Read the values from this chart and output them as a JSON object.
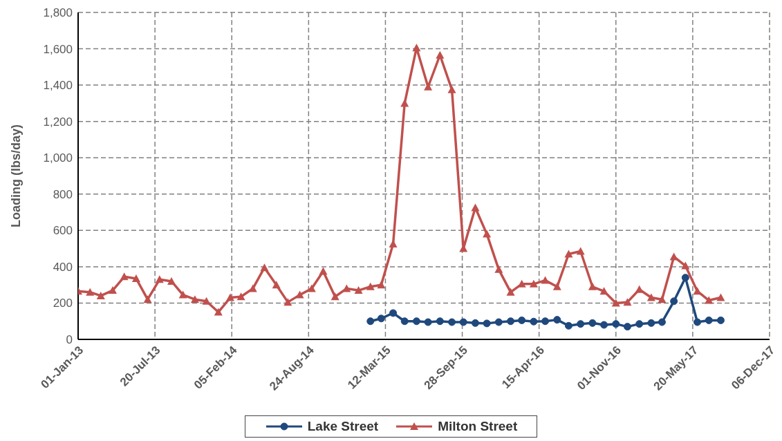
{
  "chart_data": {
    "type": "line",
    "ylabel": "Loading (lbs/day)",
    "x": [
      "2013-01",
      "2013-02",
      "2013-03",
      "2013-04",
      "2013-05",
      "2013-06",
      "2013-07",
      "2013-08",
      "2013-09",
      "2013-10",
      "2013-11",
      "2013-12",
      "2014-01",
      "2014-02",
      "2014-03",
      "2014-04",
      "2014-05",
      "2014-06",
      "2014-07",
      "2014-08",
      "2014-09",
      "2014-10",
      "2014-11",
      "2014-12",
      "2015-01",
      "2015-02",
      "2015-03",
      "2015-04",
      "2015-05",
      "2015-06",
      "2015-07",
      "2015-08",
      "2015-09",
      "2015-10",
      "2015-11",
      "2015-12",
      "2016-01",
      "2016-02",
      "2016-03",
      "2016-04",
      "2016-05",
      "2016-06",
      "2016-07",
      "2016-08",
      "2016-09",
      "2016-10",
      "2016-11",
      "2016-12",
      "2017-01",
      "2017-02",
      "2017-03",
      "2017-04",
      "2017-05",
      "2017-06",
      "2017-07",
      "2017-08"
    ],
    "series": [
      {
        "name": "Lake Street",
        "color": "#1f497d",
        "marker": "circle",
        "values": [
          null,
          null,
          null,
          null,
          null,
          null,
          null,
          null,
          null,
          null,
          null,
          null,
          null,
          null,
          null,
          null,
          null,
          null,
          null,
          null,
          null,
          null,
          null,
          null,
          null,
          100,
          115,
          145,
          100,
          100,
          95,
          100,
          95,
          95,
          90,
          88,
          95,
          100,
          105,
          98,
          100,
          108,
          75,
          85,
          90,
          80,
          85,
          70,
          85,
          90,
          95,
          210,
          340,
          95,
          105,
          105
        ]
      },
      {
        "name": "Milton Street",
        "color": "#c0504d",
        "marker": "triangle",
        "values": [
          265,
          260,
          240,
          270,
          345,
          335,
          220,
          330,
          320,
          245,
          220,
          210,
          150,
          230,
          235,
          280,
          395,
          300,
          205,
          245,
          280,
          375,
          235,
          280,
          270,
          290,
          300,
          525,
          1300,
          1605,
          1390,
          1565,
          1375,
          500,
          725,
          580,
          385,
          260,
          305,
          305,
          325,
          290,
          470,
          485,
          290,
          265,
          200,
          205,
          275,
          230,
          220,
          455,
          405,
          265,
          215,
          230
        ]
      }
    ],
    "xlim": [
      "2013-01-01",
      "2017-12-06"
    ],
    "xticks": [
      {
        "value": "2013-01-01",
        "label": "01-Jan-13"
      },
      {
        "value": "2013-07-20",
        "label": "20-Jul-13"
      },
      {
        "value": "2014-02-05",
        "label": "05-Feb-14"
      },
      {
        "value": "2014-08-24",
        "label": "24-Aug-14"
      },
      {
        "value": "2015-03-12",
        "label": "12-Mar-15"
      },
      {
        "value": "2015-09-28",
        "label": "28-Sep-15"
      },
      {
        "value": "2016-04-15",
        "label": "15-Apr-16"
      },
      {
        "value": "2016-11-01",
        "label": "01-Nov-16"
      },
      {
        "value": "2017-05-20",
        "label": "20-May-17"
      },
      {
        "value": "2017-12-06",
        "label": "06-Dec-17"
      }
    ],
    "ylim": [
      0,
      1800
    ],
    "yticks": [
      0,
      200,
      400,
      600,
      800,
      {
        "value": 1000,
        "label": "1,000"
      },
      {
        "value": 1200,
        "label": "1,200"
      },
      {
        "value": 1400,
        "label": "1,400"
      },
      {
        "value": 1600,
        "label": "1,600"
      },
      {
        "value": 1800,
        "label": "1,800"
      }
    ],
    "grid": true,
    "legend": "bottom",
    "line_style": "solid"
  }
}
